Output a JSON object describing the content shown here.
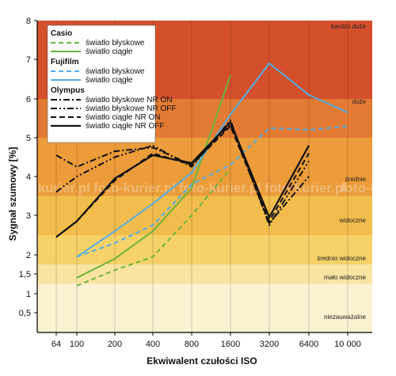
{
  "chart_data": {
    "type": "line",
    "xlabel": "Ekwiwalent czułości ISO",
    "ylabel": "Sygnał szumowy [%]",
    "x_ticks": [
      "64",
      "100",
      "200",
      "400",
      "800",
      "1600",
      "3200",
      "6400",
      "10 000"
    ],
    "y_ticks": [
      "0,5",
      "1",
      "1,5",
      "2",
      "3",
      "4",
      "5",
      "6",
      "7",
      "8"
    ],
    "zones": [
      {
        "label": "bardzo duże",
        "from": 6,
        "to": 8,
        "color": "#d4502c"
      },
      {
        "label": "duże",
        "from": 5,
        "to": 6,
        "color": "#e27a34"
      },
      {
        "label": "średnie",
        "from": 3.5,
        "to": 5,
        "color": "#ec9c3a"
      },
      {
        "label": "widoczne",
        "from": 2.5,
        "to": 3.5,
        "color": "#f2bd4c"
      },
      {
        "label": "średnio widoczne",
        "from": 1.75,
        "to": 2.5,
        "color": "#f6d269"
      },
      {
        "label": "mało widoczne",
        "from": 1.25,
        "to": 1.75,
        "color": "#f9e4a1"
      },
      {
        "label": "niezauważalne",
        "from": 0,
        "to": 1.25,
        "color": "#fcf2d2"
      }
    ],
    "legend_groups": [
      "Casio",
      "Fujifilm",
      "Olympus"
    ],
    "series": [
      {
        "name": "światło błyskowe",
        "group": "Casio",
        "color": "#6ab43c",
        "dash": "6,4",
        "width": 2,
        "points": [
          [
            100,
            1.2
          ],
          [
            200,
            1.6
          ],
          [
            400,
            1.95
          ],
          [
            800,
            3.0
          ],
          [
            1600,
            4.2
          ]
        ]
      },
      {
        "name": "światło ciągłe",
        "group": "Casio",
        "color": "#6ab43c",
        "dash": "",
        "width": 2,
        "points": [
          [
            100,
            1.4
          ],
          [
            200,
            1.9
          ],
          [
            400,
            2.6
          ],
          [
            800,
            3.7
          ],
          [
            1600,
            6.6
          ]
        ]
      },
      {
        "name": "światło błyskowe",
        "group": "Fujifilm",
        "color": "#52aee6",
        "dash": "6,4",
        "width": 2,
        "points": [
          [
            100,
            1.95
          ],
          [
            200,
            2.3
          ],
          [
            400,
            2.75
          ],
          [
            800,
            3.8
          ],
          [
            1600,
            4.3
          ],
          [
            3200,
            5.25
          ],
          [
            6400,
            5.2
          ],
          [
            10000,
            5.3
          ]
        ]
      },
      {
        "name": "światło ciągłe",
        "group": "Fujifilm",
        "color": "#52aee6",
        "dash": "",
        "width": 2,
        "points": [
          [
            100,
            1.95
          ],
          [
            200,
            2.6
          ],
          [
            400,
            3.3
          ],
          [
            800,
            4.1
          ],
          [
            1600,
            5.6
          ],
          [
            3200,
            6.9
          ],
          [
            6400,
            6.1
          ],
          [
            10000,
            5.65
          ]
        ]
      },
      {
        "name": "światło błyskowe NR ON",
        "group": "Olympus",
        "color": "#111111",
        "dash": "8,3,2,3",
        "width": 2,
        "points": [
          [
            64,
            4.55
          ],
          [
            100,
            4.25
          ],
          [
            200,
            4.65
          ],
          [
            400,
            4.75
          ],
          [
            800,
            4.3
          ],
          [
            1600,
            5.35
          ],
          [
            3200,
            2.8
          ],
          [
            6400,
            4.0
          ]
        ]
      },
      {
        "name": "światło błyskowe NR OFF",
        "group": "Olympus",
        "color": "#111111",
        "dash": "8,3,2,3,2,3",
        "width": 2,
        "points": [
          [
            64,
            3.6
          ],
          [
            100,
            4.0
          ],
          [
            200,
            4.5
          ],
          [
            400,
            4.8
          ],
          [
            800,
            4.25
          ],
          [
            1600,
            5.45
          ],
          [
            3200,
            2.75
          ],
          [
            6400,
            4.4
          ]
        ]
      },
      {
        "name": "światło ciągłe NR ON",
        "group": "Olympus",
        "color": "#111111",
        "dash": "7,4",
        "width": 2,
        "points": [
          [
            64,
            2.45
          ],
          [
            100,
            2.85
          ],
          [
            200,
            3.9
          ],
          [
            400,
            4.6
          ],
          [
            800,
            4.3
          ],
          [
            1600,
            5.3
          ],
          [
            3200,
            2.85
          ],
          [
            6400,
            4.6
          ]
        ]
      },
      {
        "name": "światło ciągłe NR OFF",
        "group": "Olympus",
        "color": "#111111",
        "dash": "",
        "width": 2.2,
        "points": [
          [
            64,
            2.45
          ],
          [
            100,
            2.85
          ],
          [
            200,
            3.95
          ],
          [
            400,
            4.55
          ],
          [
            800,
            4.35
          ],
          [
            1600,
            5.4
          ],
          [
            3200,
            2.95
          ],
          [
            6400,
            4.8
          ]
        ]
      }
    ],
    "legend_position": "top-left",
    "grid": "vertical",
    "watermark": "foto-kurier.pl"
  }
}
